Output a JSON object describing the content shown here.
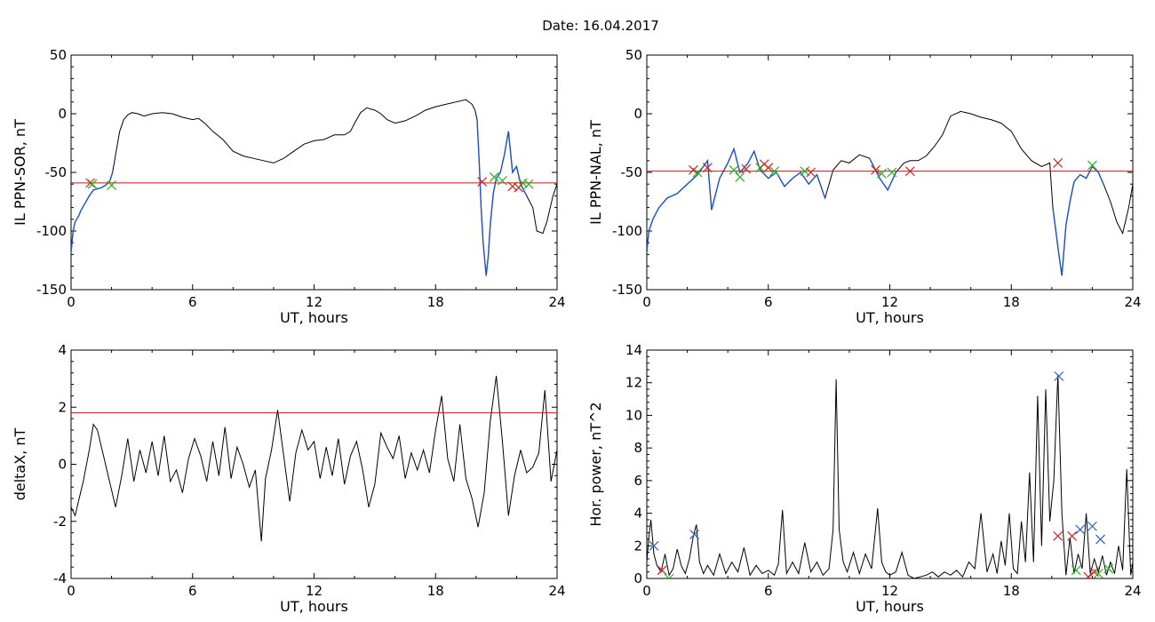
{
  "title": "Date:  16.04.2017",
  "colors": {
    "trace": "#000000",
    "highlight": "#1f52c8",
    "threshold": "#d01010",
    "marker_red": "#d42020",
    "marker_green": "#1fb51f",
    "marker_blue": "#2a5fd0"
  },
  "chart_data": [
    {
      "id": "sor",
      "type": "line",
      "ylabel": "IL PPN-SOR, nT",
      "xlabel": "UT, hours",
      "xlim": [
        0,
        24
      ],
      "ylim": [
        -150,
        50
      ],
      "xticks": [
        "0",
        "6",
        "12",
        "18",
        "24"
      ],
      "yticks": [
        "50",
        "0",
        "-50",
        "-100",
        "-150"
      ],
      "threshold": -59,
      "series": [
        {
          "x": [
            0,
            0.1,
            0.2,
            0.35,
            0.5,
            0.7,
            0.9,
            1.1,
            1.3,
            1.5,
            1.7,
            1.9,
            2.05,
            2.2,
            2.4,
            2.6,
            2.8,
            3.0,
            3.3,
            3.6,
            4.0,
            4.5,
            5.0,
            5.5,
            6.0,
            6.3,
            6.6,
            7.0,
            7.5,
            8.0,
            8.5,
            9.0,
            9.5,
            10.0,
            10.5,
            11.0,
            11.5,
            12.0,
            12.5,
            13.0,
            13.5,
            13.8,
            14.0,
            14.3,
            14.6,
            15.0,
            15.3,
            15.6,
            16.0,
            16.5,
            17.0,
            17.5,
            18.0,
            18.5,
            19.0,
            19.5,
            19.8,
            19.95,
            20.05,
            20.15,
            20.25,
            20.35,
            20.5,
            20.6,
            20.7,
            20.85,
            21.0,
            21.2,
            21.4,
            21.6,
            21.8,
            22.0,
            22.2,
            22.5,
            22.8,
            23.0,
            23.3,
            23.5,
            23.8,
            24.0
          ],
          "y": [
            -118,
            -100,
            -92,
            -88,
            -82,
            -76,
            -70,
            -65,
            -64,
            -63,
            -61,
            -58,
            -50,
            -35,
            -15,
            -5,
            -1,
            1,
            0,
            -2,
            0,
            1,
            0,
            -3,
            -5,
            -4,
            -8,
            -15,
            -22,
            -32,
            -36,
            -38,
            -40,
            -42,
            -38,
            -32,
            -26,
            -23,
            -22,
            -18,
            -18,
            -15,
            -8,
            1,
            5,
            3,
            0,
            -5,
            -8,
            -6,
            -2,
            3,
            6,
            8,
            10,
            12,
            8,
            3,
            -5,
            -40,
            -80,
            -110,
            -138,
            -122,
            -95,
            -68,
            -55,
            -50,
            -35,
            -15,
            -50,
            -45,
            -60,
            -70,
            -80,
            -100,
            -102,
            -92,
            -70,
            -60
          ],
          "highlight": [
            [
              0,
              2.05
            ],
            [
              20.0,
              22.6
            ]
          ]
        }
      ],
      "markers": [
        {
          "x": 0.95,
          "y": -59,
          "color": "red"
        },
        {
          "x": 1.05,
          "y": -60,
          "color": "green"
        },
        {
          "x": 2.0,
          "y": -61,
          "color": "green"
        },
        {
          "x": 20.3,
          "y": -58,
          "color": "red"
        },
        {
          "x": 20.9,
          "y": -54,
          "color": "green"
        },
        {
          "x": 21.3,
          "y": -57,
          "color": "green"
        },
        {
          "x": 21.8,
          "y": -62,
          "color": "red"
        },
        {
          "x": 22.1,
          "y": -63,
          "color": "red"
        },
        {
          "x": 22.3,
          "y": -59,
          "color": "green"
        },
        {
          "x": 22.6,
          "y": -60,
          "color": "green"
        }
      ]
    },
    {
      "id": "nal",
      "type": "line",
      "ylabel": "IL PPN-NAL, nT",
      "xlabel": "UT, hours",
      "xlim": [
        0,
        24
      ],
      "ylim": [
        -150,
        50
      ],
      "xticks": [
        "0",
        "6",
        "12",
        "18",
        "24"
      ],
      "yticks": [
        "50",
        "0",
        "-50",
        "-100",
        "-150"
      ],
      "threshold": -49,
      "series": [
        {
          "x": [
            0,
            0.1,
            0.3,
            0.6,
            1.0,
            1.5,
            2.0,
            2.5,
            3.0,
            3.2,
            3.6,
            4.0,
            4.3,
            4.6,
            5.0,
            5.3,
            5.6,
            6.0,
            6.4,
            6.8,
            7.2,
            7.6,
            8.0,
            8.4,
            8.8,
            9.2,
            9.6,
            10.0,
            10.5,
            11.0,
            11.5,
            11.9,
            12.3,
            12.7,
            13.0,
            13.4,
            13.8,
            14.2,
            14.6,
            15.0,
            15.5,
            16.0,
            16.5,
            17.0,
            17.5,
            18.0,
            18.5,
            19.0,
            19.5,
            19.9,
            20.05,
            20.2,
            20.35,
            20.5,
            20.7,
            20.9,
            21.1,
            21.4,
            21.7,
            22.0,
            22.3,
            22.6,
            22.9,
            23.2,
            23.5,
            23.8,
            24.0
          ],
          "y": [
            -118,
            -100,
            -90,
            -80,
            -72,
            -68,
            -60,
            -52,
            -40,
            -82,
            -55,
            -42,
            -30,
            -50,
            -42,
            -32,
            -48,
            -55,
            -50,
            -62,
            -55,
            -50,
            -60,
            -52,
            -72,
            -48,
            -40,
            -42,
            -35,
            -38,
            -55,
            -65,
            -50,
            -42,
            -40,
            -40,
            -36,
            -28,
            -18,
            -2,
            2,
            0,
            -3,
            -5,
            -8,
            -15,
            -30,
            -40,
            -45,
            -42,
            -80,
            -100,
            -120,
            -138,
            -95,
            -75,
            -58,
            -52,
            -55,
            -45,
            -50,
            -62,
            -75,
            -92,
            -102,
            -80,
            -60
          ],
          "highlight": [
            [
              0,
              9.1
            ],
            [
              11.0,
              12.6
            ],
            [
              20.0,
              22.6
            ]
          ]
        }
      ],
      "markers": [
        {
          "x": 2.3,
          "y": -48,
          "color": "red"
        },
        {
          "x": 2.5,
          "y": -50,
          "color": "green"
        },
        {
          "x": 3.0,
          "y": -46,
          "color": "red"
        },
        {
          "x": 4.3,
          "y": -48,
          "color": "green"
        },
        {
          "x": 4.6,
          "y": -54,
          "color": "green"
        },
        {
          "x": 4.9,
          "y": -47,
          "color": "red"
        },
        {
          "x": 5.6,
          "y": -46,
          "color": "green"
        },
        {
          "x": 5.8,
          "y": -43,
          "color": "red"
        },
        {
          "x": 6.0,
          "y": -46,
          "color": "red"
        },
        {
          "x": 6.3,
          "y": -49,
          "color": "green"
        },
        {
          "x": 7.8,
          "y": -49,
          "color": "green"
        },
        {
          "x": 8.1,
          "y": -50,
          "color": "red"
        },
        {
          "x": 11.3,
          "y": -48,
          "color": "red"
        },
        {
          "x": 11.6,
          "y": -51,
          "color": "green"
        },
        {
          "x": 12.1,
          "y": -50,
          "color": "green"
        },
        {
          "x": 13.0,
          "y": -49,
          "color": "red"
        },
        {
          "x": 20.3,
          "y": -42,
          "color": "red"
        },
        {
          "x": 22.0,
          "y": -44,
          "color": "green"
        }
      ]
    },
    {
      "id": "deltax",
      "type": "line",
      "ylabel": "deltaX, nT",
      "xlabel": "UT, hours",
      "xlim": [
        0,
        24
      ],
      "ylim": [
        -4,
        4
      ],
      "xticks": [
        "0",
        "6",
        "12",
        "18",
        "24"
      ],
      "yticks": [
        "4",
        "2",
        "0",
        "-2",
        "-4"
      ],
      "threshold": 1.8,
      "series": [
        {
          "x": [
            0,
            0.2,
            0.4,
            0.6,
            0.9,
            1.1,
            1.3,
            1.6,
            1.9,
            2.2,
            2.5,
            2.8,
            3.1,
            3.4,
            3.7,
            4.0,
            4.3,
            4.6,
            4.9,
            5.2,
            5.5,
            5.8,
            6.1,
            6.4,
            6.7,
            7.0,
            7.3,
            7.6,
            7.9,
            8.2,
            8.5,
            8.8,
            9.1,
            9.4,
            9.6,
            9.9,
            10.2,
            10.5,
            10.8,
            11.1,
            11.4,
            11.7,
            12.0,
            12.3,
            12.6,
            12.9,
            13.2,
            13.5,
            13.8,
            14.1,
            14.4,
            14.7,
            15.0,
            15.3,
            15.6,
            15.9,
            16.2,
            16.5,
            16.8,
            17.1,
            17.4,
            17.7,
            18.0,
            18.3,
            18.6,
            18.9,
            19.2,
            19.5,
            19.8,
            20.1,
            20.4,
            20.7,
            21.0,
            21.3,
            21.6,
            21.9,
            22.2,
            22.5,
            22.8,
            23.1,
            23.4,
            23.7,
            24.0
          ],
          "y": [
            -1.5,
            -1.8,
            -1.2,
            -0.6,
            0.5,
            1.4,
            1.2,
            0.3,
            -0.6,
            -1.5,
            -0.4,
            0.9,
            -0.6,
            0.5,
            -0.3,
            0.8,
            -0.4,
            1.0,
            -0.6,
            -0.2,
            -1.0,
            0.2,
            0.9,
            0.3,
            -0.6,
            0.8,
            -0.4,
            1.3,
            -0.5,
            0.6,
            0.0,
            -0.8,
            -0.2,
            -2.7,
            -0.5,
            0.5,
            1.9,
            0.3,
            -1.3,
            0.4,
            1.2,
            0.5,
            0.8,
            -0.5,
            0.6,
            -0.4,
            0.9,
            -0.7,
            0.3,
            0.8,
            -0.2,
            -1.5,
            -0.7,
            1.1,
            0.6,
            0.2,
            1.0,
            -0.5,
            0.4,
            -0.2,
            0.5,
            -0.3,
            1.2,
            2.4,
            0.2,
            -0.6,
            1.4,
            -0.5,
            -1.2,
            -2.2,
            -1.0,
            1.5,
            3.1,
            0.8,
            -1.8,
            -0.4,
            0.5,
            -0.3,
            -0.1,
            0.4,
            2.6,
            -0.6,
            0.5
          ]
        }
      ],
      "markers": []
    },
    {
      "id": "power",
      "type": "line",
      "ylabel": "Hor. power, nT^2",
      "xlabel": "UT, hours",
      "xlim": [
        0,
        24
      ],
      "ylim": [
        0,
        14
      ],
      "xticks": [
        "0",
        "6",
        "12",
        "18",
        "24"
      ],
      "yticks": [
        "14",
        "12",
        "10",
        "8",
        "6",
        "4",
        "2",
        "0"
      ],
      "series": [
        {
          "x": [
            0,
            0.1,
            0.2,
            0.35,
            0.5,
            0.7,
            0.9,
            1.1,
            1.3,
            1.5,
            1.7,
            1.9,
            2.1,
            2.3,
            2.45,
            2.6,
            2.8,
            3.0,
            3.3,
            3.6,
            3.9,
            4.2,
            4.5,
            4.8,
            5.1,
            5.4,
            5.7,
            6.0,
            6.3,
            6.5,
            6.7,
            6.9,
            7.2,
            7.5,
            7.8,
            8.1,
            8.4,
            8.7,
            9.0,
            9.2,
            9.35,
            9.5,
            9.7,
            9.9,
            10.2,
            10.5,
            10.8,
            11.1,
            11.4,
            11.6,
            11.8,
            12.0,
            12.3,
            12.6,
            12.9,
            13.2,
            13.5,
            13.8,
            14.1,
            14.4,
            14.7,
            15.0,
            15.3,
            15.6,
            15.9,
            16.2,
            16.5,
            16.8,
            17.1,
            17.3,
            17.5,
            17.7,
            17.9,
            18.1,
            18.3,
            18.5,
            18.7,
            18.9,
            19.1,
            19.3,
            19.5,
            19.7,
            19.9,
            20.1,
            20.3,
            20.5,
            20.7,
            20.9,
            21.1,
            21.3,
            21.5,
            21.7,
            21.9,
            22.1,
            22.3,
            22.5,
            22.7,
            22.9,
            23.1,
            23.3,
            23.5,
            23.7,
            23.9,
            24.0
          ],
          "y": [
            1.0,
            2.5,
            3.6,
            1.5,
            0.8,
            0.4,
            1.5,
            0.2,
            0.6,
            1.8,
            0.8,
            0.3,
            1.2,
            2.6,
            3.3,
            1.0,
            0.3,
            0.8,
            0.2,
            1.5,
            0.3,
            1.0,
            0.4,
            1.9,
            0.2,
            0.8,
            0.3,
            0.5,
            0.2,
            0.9,
            4.2,
            0.3,
            1.0,
            0.3,
            2.2,
            0.4,
            1.0,
            0.2,
            0.6,
            3.0,
            12.2,
            3.0,
            1.0,
            0.4,
            1.6,
            0.3,
            1.5,
            0.6,
            4.3,
            1.0,
            0.4,
            0.2,
            0.4,
            1.6,
            0.2,
            0.0,
            0.1,
            0.2,
            0.4,
            0.1,
            0.4,
            0.2,
            0.5,
            0.1,
            1.0,
            0.6,
            4.0,
            0.4,
            1.5,
            0.3,
            2.3,
            0.8,
            4.0,
            0.6,
            0.3,
            3.5,
            1.0,
            6.5,
            1.0,
            11.2,
            2.0,
            11.6,
            3.5,
            6.0,
            12.5,
            4.0,
            0.2,
            2.5,
            0.3,
            1.5,
            0.6,
            4.0,
            0.3,
            1.2,
            0.4,
            1.4,
            0.2,
            1.0,
            0.3,
            2.0,
            0.5,
            6.7,
            0.2,
            1.0
          ]
        }
      ],
      "markers": [
        {
          "x": 0.35,
          "y": 2.0,
          "color": "blue"
        },
        {
          "x": 0.75,
          "y": 0.5,
          "color": "red"
        },
        {
          "x": 1.1,
          "y": 0.0,
          "color": "green"
        },
        {
          "x": 2.35,
          "y": 2.7,
          "color": "blue"
        },
        {
          "x": 20.35,
          "y": 12.4,
          "color": "blue"
        },
        {
          "x": 20.3,
          "y": 2.6,
          "color": "red"
        },
        {
          "x": 21.0,
          "y": 2.6,
          "color": "red"
        },
        {
          "x": 21.4,
          "y": 3.0,
          "color": "blue"
        },
        {
          "x": 21.2,
          "y": 0.5,
          "color": "green"
        },
        {
          "x": 22.0,
          "y": 3.2,
          "color": "blue"
        },
        {
          "x": 22.1,
          "y": 0.4,
          "color": "red"
        },
        {
          "x": 22.4,
          "y": 2.4,
          "color": "blue"
        },
        {
          "x": 22.3,
          "y": 0.3,
          "color": "green"
        },
        {
          "x": 22.8,
          "y": 0.6,
          "color": "green"
        },
        {
          "x": 21.8,
          "y": 0.1,
          "color": "red"
        }
      ]
    }
  ]
}
